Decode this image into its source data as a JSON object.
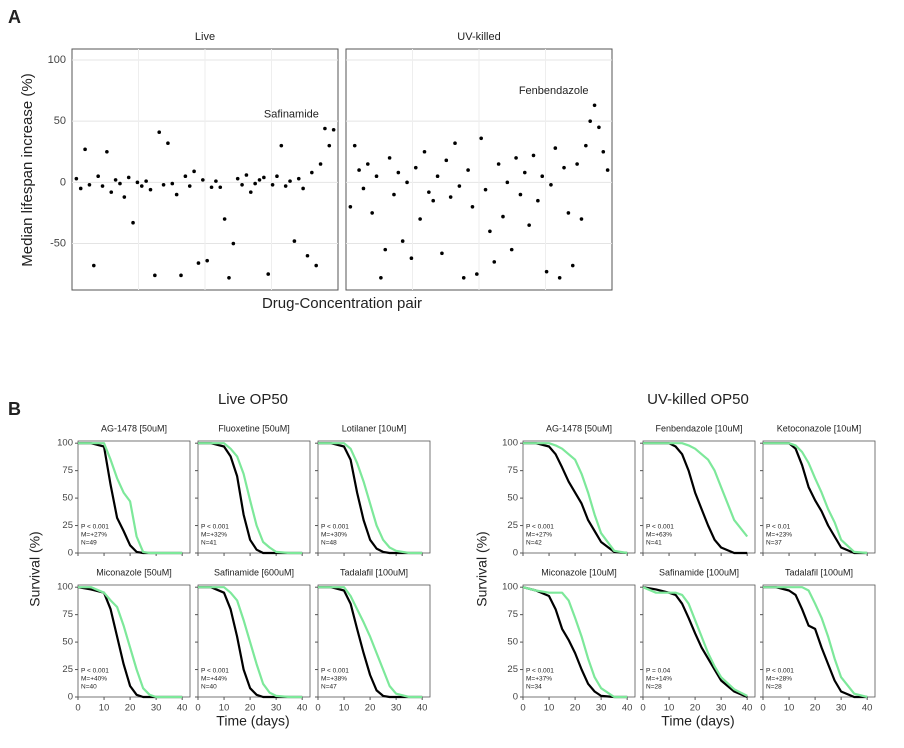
{
  "labels": {
    "panel_a": "A",
    "panel_b": "B",
    "a_y_label": "Median lifespan increase (%)",
    "a_x_label": "Drug-Concentration pair",
    "b_live_title": "Live OP50",
    "b_uv_title": "UV-killed OP50",
    "b_y_label": "Survival (%)",
    "b_x_label": "Time (days)"
  },
  "chart_data": [
    {
      "type": "scatter",
      "title": "Live",
      "annotation": "Safinamide",
      "color": "#000000",
      "grid": true,
      "xlim": [
        0,
        61
      ],
      "ylim": [
        -88,
        109
      ],
      "yticks": [
        -50,
        0,
        50,
        100
      ],
      "values": [
        3,
        -5,
        27,
        -2,
        -68,
        5,
        -3,
        25,
        -8,
        2,
        -1,
        -12,
        4,
        -33,
        0,
        -3,
        1,
        -6,
        -76,
        41,
        -2,
        32,
        -1,
        -10,
        -76,
        5,
        -3,
        9,
        -66,
        2,
        -64,
        -4,
        1,
        -4,
        -30,
        -78,
        -50,
        3,
        -2,
        6,
        -8,
        -1,
        2,
        4,
        -75,
        -2,
        5,
        30,
        -3,
        1,
        -48,
        3,
        -5,
        -60,
        8,
        -68,
        15,
        44,
        30,
        43
      ]
    },
    {
      "type": "scatter",
      "title": "UV-killed",
      "annotation": "Fenbendazole",
      "color": "#000000",
      "grid": true,
      "xlim": [
        0,
        61
      ],
      "ylim": [
        -88,
        109
      ],
      "yticks": [
        -50,
        0,
        50,
        100
      ],
      "values": [
        -20,
        30,
        10,
        -5,
        15,
        -25,
        5,
        -78,
        -55,
        20,
        -10,
        8,
        -48,
        0,
        -62,
        12,
        -30,
        25,
        -8,
        -15,
        5,
        -58,
        18,
        -12,
        32,
        -3,
        -78,
        10,
        -20,
        -75,
        36,
        -6,
        -40,
        -65,
        15,
        -28,
        0,
        -55,
        20,
        -10,
        8,
        -35,
        22,
        -15,
        5,
        -73,
        -2,
        28,
        -78,
        12,
        -25,
        -68,
        15,
        -30,
        30,
        50,
        63,
        45,
        25,
        10
      ]
    },
    {
      "type": "line",
      "title": "AG-1478 [50uM]",
      "annotations": [
        "P < 0.001",
        "M=+27%",
        "N=49"
      ],
      "xlim": [
        0,
        43
      ],
      "ylim": [
        0,
        102
      ],
      "xticks": [
        0,
        10,
        20,
        30,
        40
      ],
      "yticks": [
        0,
        25,
        50,
        75,
        100
      ],
      "x": [
        0,
        5,
        10,
        12.5,
        15,
        17.5,
        20,
        22.5,
        25,
        27.5,
        30,
        35,
        40
      ],
      "series": [
        {
          "color": "#000000",
          "values": [
            100,
            100,
            97,
            62,
            32,
            20,
            7,
            1,
            0,
            0,
            0,
            0,
            0
          ]
        },
        {
          "color": "#7de89a",
          "values": [
            100,
            100,
            100,
            85,
            68,
            55,
            47,
            15,
            1,
            0,
            0,
            0,
            0
          ]
        }
      ]
    },
    {
      "type": "line",
      "title": "Fluoxetine [50uM]",
      "annotations": [
        "P < 0.001",
        "M=+32%",
        "N=41"
      ],
      "xlim": [
        0,
        43
      ],
      "ylim": [
        0,
        102
      ],
      "xticks": [
        0,
        10,
        20,
        30,
        40
      ],
      "yticks": [
        0,
        25,
        50,
        75,
        100
      ],
      "x": [
        0,
        5,
        10,
        12.5,
        15,
        17.5,
        20,
        22.5,
        25,
        27.5,
        30,
        35,
        40
      ],
      "series": [
        {
          "color": "#000000",
          "values": [
            100,
            100,
            97,
            88,
            70,
            35,
            12,
            3,
            0,
            0,
            0,
            0,
            0
          ]
        },
        {
          "color": "#7de89a",
          "values": [
            100,
            100,
            100,
            95,
            88,
            72,
            48,
            25,
            10,
            5,
            1,
            0,
            0
          ]
        }
      ]
    },
    {
      "type": "line",
      "title": "Lotilaner [10uM]",
      "annotations": [
        "P < 0.001",
        "M=+30%",
        "N=48"
      ],
      "xlim": [
        0,
        43
      ],
      "ylim": [
        0,
        102
      ],
      "xticks": [
        0,
        10,
        20,
        30,
        40
      ],
      "yticks": [
        0,
        25,
        50,
        75,
        100
      ],
      "x": [
        0,
        5,
        10,
        12.5,
        15,
        17.5,
        20,
        22.5,
        25,
        27.5,
        30,
        35,
        40
      ],
      "series": [
        {
          "color": "#000000",
          "values": [
            100,
            100,
            97,
            85,
            55,
            30,
            12,
            4,
            1,
            0,
            0,
            0,
            0
          ]
        },
        {
          "color": "#7de89a",
          "values": [
            100,
            100,
            100,
            95,
            82,
            65,
            45,
            25,
            12,
            5,
            2,
            0,
            0
          ]
        }
      ]
    },
    {
      "type": "line",
      "title": "Miconazole [50uM]",
      "annotations": [
        "P < 0.001",
        "M=+40%",
        "N=40"
      ],
      "xlim": [
        0,
        43
      ],
      "ylim": [
        0,
        102
      ],
      "xticks": [
        0,
        10,
        20,
        30,
        40
      ],
      "yticks": [
        0,
        25,
        50,
        75,
        100
      ],
      "x": [
        0,
        5,
        10,
        12.5,
        15,
        17.5,
        20,
        22.5,
        25,
        27.5,
        30,
        35,
        40
      ],
      "series": [
        {
          "color": "#000000",
          "values": [
            100,
            98,
            95,
            80,
            55,
            30,
            10,
            2,
            0,
            0,
            0,
            0,
            0
          ]
        },
        {
          "color": "#7de89a",
          "values": [
            100,
            100,
            95,
            88,
            82,
            65,
            45,
            25,
            8,
            2,
            0,
            0,
            0
          ]
        }
      ]
    },
    {
      "type": "line",
      "title": "Safinamide [600uM]",
      "annotations": [
        "P < 0.001",
        "M=+44%",
        "N=40"
      ],
      "xlim": [
        0,
        43
      ],
      "ylim": [
        0,
        102
      ],
      "xticks": [
        0,
        10,
        20,
        30,
        40
      ],
      "yticks": [
        0,
        25,
        50,
        75,
        100
      ],
      "x": [
        0,
        5,
        10,
        12.5,
        15,
        17.5,
        20,
        22.5,
        25,
        27.5,
        30,
        35,
        40
      ],
      "series": [
        {
          "color": "#000000",
          "values": [
            100,
            100,
            95,
            80,
            55,
            25,
            8,
            2,
            0,
            0,
            0,
            0,
            0
          ]
        },
        {
          "color": "#7de89a",
          "values": [
            100,
            100,
            100,
            95,
            88,
            70,
            50,
            30,
            12,
            4,
            1,
            0,
            0
          ]
        }
      ]
    },
    {
      "type": "line",
      "title": "Tadalafil [100uM]",
      "annotations": [
        "P < 0.001",
        "M=+38%",
        "N=47"
      ],
      "xlim": [
        0,
        43
      ],
      "ylim": [
        0,
        102
      ],
      "xticks": [
        0,
        10,
        20,
        30,
        40
      ],
      "yticks": [
        0,
        25,
        50,
        75,
        100
      ],
      "x": [
        0,
        5,
        10,
        12.5,
        15,
        17.5,
        20,
        22.5,
        25,
        27.5,
        30,
        35,
        40
      ],
      "series": [
        {
          "color": "#000000",
          "values": [
            100,
            100,
            97,
            85,
            62,
            40,
            20,
            6,
            1,
            0,
            0,
            0,
            0
          ]
        },
        {
          "color": "#7de89a",
          "values": [
            100,
            100,
            100,
            92,
            80,
            68,
            55,
            40,
            25,
            10,
            3,
            0,
            0
          ]
        }
      ]
    },
    {
      "type": "line",
      "title": "AG-1478 [50uM]",
      "annotations": [
        "P < 0.001",
        "M=+27%",
        "N=42"
      ],
      "xlim": [
        0,
        43
      ],
      "ylim": [
        0,
        102
      ],
      "xticks": [
        0,
        10,
        20,
        30,
        40
      ],
      "yticks": [
        0,
        25,
        50,
        75,
        100
      ],
      "x": [
        0,
        5,
        10,
        12.5,
        15,
        17.5,
        20,
        22.5,
        25,
        27.5,
        30,
        35,
        40
      ],
      "series": [
        {
          "color": "#000000",
          "values": [
            100,
            100,
            97,
            90,
            78,
            65,
            55,
            45,
            30,
            20,
            10,
            1,
            0
          ]
        },
        {
          "color": "#7de89a",
          "values": [
            100,
            100,
            100,
            98,
            95,
            90,
            85,
            72,
            55,
            35,
            18,
            2,
            0
          ]
        }
      ]
    },
    {
      "type": "line",
      "title": "Fenbendazole [10uM]",
      "annotations": [
        "P < 0.001",
        "M=+63%",
        "N=41"
      ],
      "xlim": [
        0,
        43
      ],
      "ylim": [
        0,
        102
      ],
      "xticks": [
        0,
        10,
        20,
        30,
        40
      ],
      "yticks": [
        0,
        25,
        50,
        75,
        100
      ],
      "x": [
        0,
        5,
        10,
        12.5,
        15,
        17.5,
        20,
        22.5,
        25,
        27.5,
        30,
        35,
        40
      ],
      "series": [
        {
          "color": "#000000",
          "values": [
            100,
            100,
            100,
            97,
            90,
            75,
            55,
            40,
            25,
            12,
            5,
            0,
            0
          ]
        },
        {
          "color": "#7de89a",
          "values": [
            100,
            100,
            100,
            100,
            100,
            98,
            95,
            90,
            85,
            75,
            60,
            30,
            15
          ]
        }
      ]
    },
    {
      "type": "line",
      "title": "Ketoconazole [10uM]",
      "annotations": [
        "P < 0.01",
        "M=+23%",
        "N=37"
      ],
      "xlim": [
        0,
        43
      ],
      "ylim": [
        0,
        102
      ],
      "xticks": [
        0,
        10,
        20,
        30,
        40
      ],
      "yticks": [
        0,
        25,
        50,
        75,
        100
      ],
      "x": [
        0,
        5,
        10,
        12.5,
        15,
        17.5,
        20,
        22.5,
        25,
        27.5,
        30,
        35,
        40
      ],
      "series": [
        {
          "color": "#000000",
          "values": [
            100,
            100,
            100,
            95,
            80,
            60,
            48,
            38,
            25,
            15,
            5,
            0,
            0
          ]
        },
        {
          "color": "#7de89a",
          "values": [
            100,
            100,
            100,
            98,
            92,
            82,
            68,
            55,
            40,
            28,
            12,
            1,
            0
          ]
        }
      ]
    },
    {
      "type": "line",
      "title": "Miconazole [10uM]",
      "annotations": [
        "P < 0.001",
        "M=+37%",
        "N=34"
      ],
      "xlim": [
        0,
        43
      ],
      "ylim": [
        0,
        102
      ],
      "xticks": [
        0,
        10,
        20,
        30,
        40
      ],
      "yticks": [
        0,
        25,
        50,
        75,
        100
      ],
      "x": [
        0,
        5,
        10,
        12.5,
        15,
        17.5,
        20,
        22.5,
        25,
        27.5,
        30,
        35,
        40
      ],
      "series": [
        {
          "color": "#000000",
          "values": [
            100,
            97,
            92,
            80,
            62,
            52,
            40,
            25,
            12,
            5,
            1,
            0,
            0
          ]
        },
        {
          "color": "#7de89a",
          "values": [
            100,
            97,
            95,
            95,
            95,
            88,
            72,
            55,
            35,
            18,
            8,
            0,
            0
          ]
        }
      ]
    },
    {
      "type": "line",
      "title": "Safinamide [100uM]",
      "annotations": [
        "P = 0.04",
        "M=+14%",
        "N=28"
      ],
      "xlim": [
        0,
        43
      ],
      "ylim": [
        0,
        102
      ],
      "xticks": [
        0,
        10,
        20,
        30,
        40
      ],
      "yticks": [
        0,
        25,
        50,
        75,
        100
      ],
      "x": [
        0,
        5,
        10,
        12.5,
        15,
        17.5,
        20,
        22.5,
        25,
        27.5,
        30,
        35,
        40
      ],
      "series": [
        {
          "color": "#000000",
          "values": [
            100,
            98,
            95,
            93,
            85,
            72,
            58,
            45,
            35,
            25,
            15,
            5,
            0
          ]
        },
        {
          "color": "#7de89a",
          "values": [
            100,
            95,
            95,
            95,
            93,
            85,
            70,
            55,
            40,
            28,
            18,
            7,
            1
          ]
        }
      ]
    },
    {
      "type": "line",
      "title": "Tadalafil [100uM]",
      "annotations": [
        "P < 0.001",
        "M=+28%",
        "N=28"
      ],
      "xlim": [
        0,
        43
      ],
      "ylim": [
        0,
        102
      ],
      "xticks": [
        0,
        10,
        20,
        30,
        40
      ],
      "yticks": [
        0,
        25,
        50,
        75,
        100
      ],
      "x": [
        0,
        5,
        10,
        12.5,
        15,
        17.5,
        20,
        22.5,
        25,
        27.5,
        30,
        35,
        40
      ],
      "series": [
        {
          "color": "#000000",
          "values": [
            100,
            100,
            97,
            93,
            80,
            65,
            62,
            45,
            30,
            15,
            5,
            0,
            0
          ]
        },
        {
          "color": "#7de89a",
          "values": [
            100,
            100,
            100,
            100,
            100,
            97,
            85,
            72,
            55,
            35,
            18,
            3,
            0
          ]
        }
      ]
    }
  ]
}
